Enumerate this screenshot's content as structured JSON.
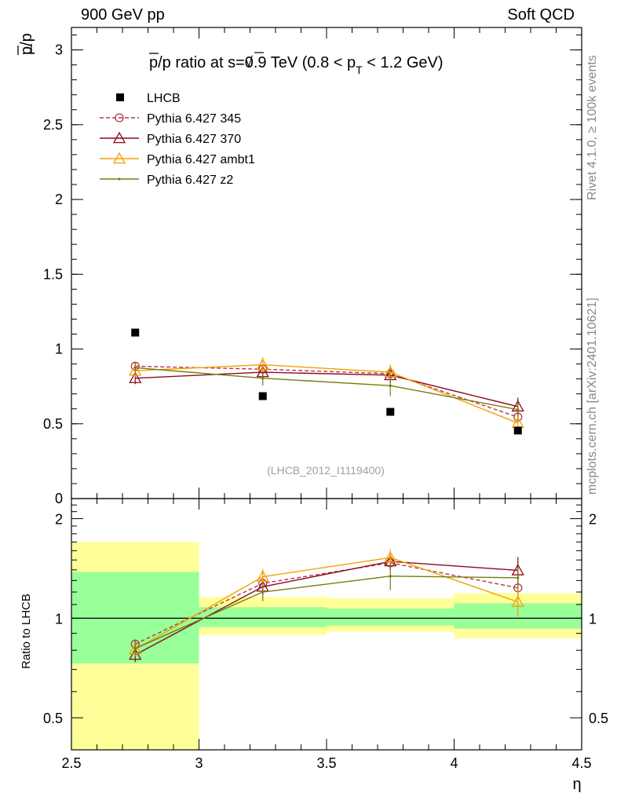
{
  "header": {
    "left": "900 GeV pp",
    "right": "Soft QCD"
  },
  "side_labels": {
    "rivet": "Rivet 4.1.0, ≥ 100k events",
    "mcplots": "mcplots.cern.ch [arXiv:2401.10621]"
  },
  "chart_data": {
    "type": "scatter",
    "title_parts": {
      "a": "p",
      "b": "/p ratio at ",
      "c": "s",
      "d": "=0.9 TeV (0.8 < p",
      "e": "T",
      "f": " < 1.2 GeV)"
    },
    "ylabel_parts": {
      "a": "p",
      "b": "/p"
    },
    "xlabel": "η",
    "ratio_ylabel": "Ratio to LHCB",
    "analysis_tag": "(LHCB_2012_I1119400)",
    "xlim": [
      2.5,
      4.5
    ],
    "ylim": [
      0,
      3.15
    ],
    "ratio_ylim": [
      0.4,
      2.3
    ],
    "x_ticks": [
      "2.5",
      "3",
      "3.5",
      "4",
      "4.5"
    ],
    "x_tick_values": [
      2.5,
      3,
      3.5,
      4,
      4.5
    ],
    "y_ticks": [
      "0",
      "0.5",
      "1",
      "1.5",
      "2",
      "2.5",
      "3"
    ],
    "y_tick_values": [
      0,
      0.5,
      1,
      1.5,
      2,
      2.5,
      3
    ],
    "ratio_ticks": [
      "0.5",
      "1",
      "2"
    ],
    "ratio_tick_values": [
      0.5,
      1,
      2
    ],
    "bins": [
      [
        2.5,
        3.0
      ],
      [
        3.0,
        3.5
      ],
      [
        3.5,
        4.0
      ],
      [
        4.0,
        4.5
      ]
    ],
    "x": [
      2.75,
      3.25,
      3.75,
      4.25
    ],
    "data": {
      "name": "LHCB",
      "values": [
        1.11,
        0.685,
        0.58,
        0.455
      ],
      "band_1sigma": [
        [
          0.73,
          1.38
        ],
        [
          0.94,
          1.08
        ],
        [
          0.95,
          1.07
        ],
        [
          0.93,
          1.11
        ]
      ],
      "band_2sigma": [
        [
          0.4,
          1.7
        ],
        [
          0.89,
          1.16
        ],
        [
          0.91,
          1.15
        ],
        [
          0.87,
          1.19
        ]
      ]
    },
    "series": [
      {
        "name": "Pythia 6.427 345",
        "color": "#b03a48",
        "marker": "circle",
        "dashed": true,
        "values": [
          0.885,
          0.865,
          0.835,
          0.545
        ],
        "errors": [
          0.03,
          0.04,
          0.04,
          0.04
        ],
        "ratio": [
          0.835,
          1.275,
          1.47,
          1.235
        ]
      },
      {
        "name": "Pythia 6.427 370",
        "color": "#8b0a1f",
        "marker": "triangle",
        "dashed": false,
        "values": [
          0.805,
          0.845,
          0.825,
          0.615
        ],
        "errors": [
          0.04,
          0.05,
          0.05,
          0.06
        ],
        "ratio": [
          0.775,
          1.245,
          1.485,
          1.395
        ]
      },
      {
        "name": "Pythia 6.427 ambt1",
        "color": "#f5a000",
        "marker": "triangle",
        "dashed": false,
        "values": [
          0.855,
          0.895,
          0.845,
          0.505
        ],
        "errors": [
          0.04,
          0.05,
          0.05,
          0.05
        ],
        "ratio": [
          0.805,
          1.335,
          1.525,
          1.12
        ]
      },
      {
        "name": "Pythia 6.427 z2",
        "color": "#7a7a10",
        "marker": "dot",
        "dashed": false,
        "values": [
          0.875,
          0.805,
          0.755,
          0.595
        ],
        "errors": [
          0.04,
          0.05,
          0.07,
          0.05
        ],
        "ratio": [
          0.81,
          1.2,
          1.34,
          1.325
        ]
      }
    ],
    "legend_placement": "top-left"
  }
}
